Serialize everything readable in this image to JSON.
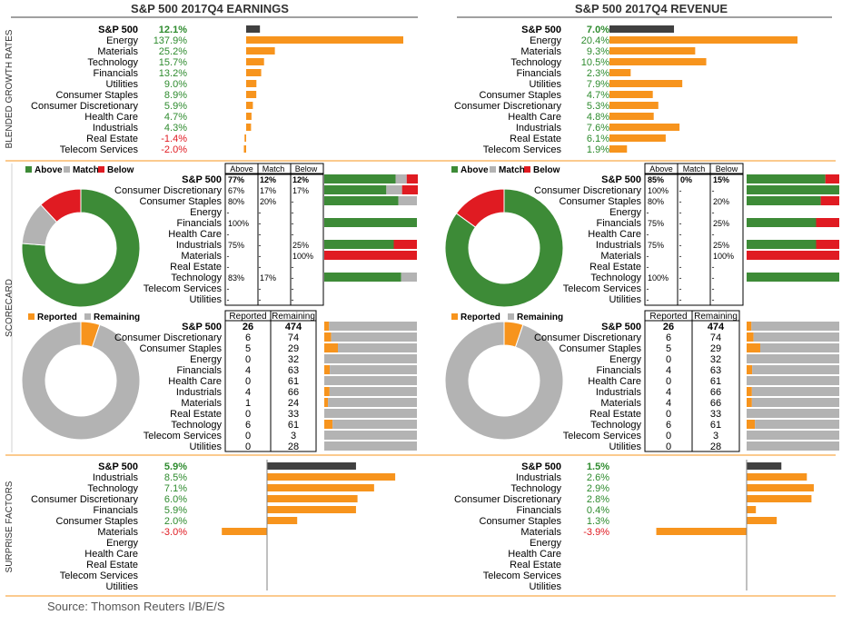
{
  "colors": {
    "orange": "#f7941d",
    "dark": "#404040",
    "green": "#3d8b37",
    "gray": "#b3b3b3",
    "red": "#e01b22",
    "pos": "#2e8b2e",
    "neg": "#e01b22",
    "divider": "#f7941d",
    "label": "#000000"
  },
  "titles": {
    "earnings": "S&P 500 2017Q4 EARNINGS",
    "revenue": "S&P 500 2017Q4 REVENUE"
  },
  "side_labels": {
    "growth": "BLENDED GROWTH RATES",
    "scorecard": "SCORECARD",
    "surprise": "SURPRISE FACTORS"
  },
  "source": "Source: Thomson Reuters I/B/E/S",
  "growth_labels": [
    "S&P 500",
    "Energy",
    "Materials",
    "Technology",
    "Financials",
    "Utilities",
    "Consumer Staples",
    "Consumer Discretionary",
    "Health Care",
    "Industrials",
    "Real Estate",
    "Telecom Services"
  ],
  "scorecard_labels": [
    "S&P 500",
    "Consumer Discretionary",
    "Consumer Staples",
    "Energy",
    "Financials",
    "Health Care",
    "Industrials",
    "Materials",
    "Real Estate",
    "Technology",
    "Telecom Services",
    "Utilities"
  ],
  "surprise_labels": [
    "S&P 500",
    "Industrials",
    "Technology",
    "Consumer Discretionary",
    "Financials",
    "Consumer Staples",
    "Materials",
    "Energy",
    "Health Care",
    "Real Estate",
    "Telecom Services",
    "Utilities"
  ],
  "legend_amb": {
    "above": "Above",
    "match": "Match",
    "below": "Below"
  },
  "legend_rr": {
    "reported": "Reported",
    "remaining": "Remaining"
  },
  "amb_headers": [
    "Above",
    "Match",
    "Below"
  ],
  "rr_headers": [
    "Reported",
    "Remaining"
  ],
  "chart_data": [
    {
      "id": "earnings_growth",
      "type": "bar",
      "values": [
        12.1,
        137.9,
        25.2,
        15.7,
        13.2,
        9.0,
        8.9,
        5.9,
        4.7,
        4.3,
        -1.4,
        -2.0
      ],
      "labels": [
        "12.1%",
        "137.9%",
        "25.2%",
        "15.7%",
        "13.2%",
        "9.0%",
        "8.9%",
        "5.9%",
        "4.7%",
        "4.3%",
        "-1.4%",
        "-2.0%"
      ]
    },
    {
      "id": "revenue_growth",
      "type": "bar",
      "values": [
        7.0,
        20.4,
        9.3,
        10.5,
        2.3,
        7.9,
        4.7,
        5.3,
        4.8,
        7.6,
        6.1,
        1.9
      ],
      "labels": [
        "7.0%",
        "20.4%",
        "9.3%",
        "10.5%",
        "2.3%",
        "7.9%",
        "4.7%",
        "5.3%",
        "4.8%",
        "7.6%",
        "6.1%",
        "1.9%"
      ]
    },
    {
      "id": "earnings_scorecard",
      "type": "table",
      "rows": [
        [
          "77%",
          "12%",
          "12%"
        ],
        [
          "67%",
          "17%",
          "17%"
        ],
        [
          "80%",
          "20%",
          "-"
        ],
        [
          "-",
          "-",
          "-"
        ],
        [
          "100%",
          "-",
          "-"
        ],
        [
          "-",
          "-",
          "-"
        ],
        [
          "75%",
          "-",
          "25%"
        ],
        [
          "-",
          "-",
          "100%"
        ],
        [
          "-",
          "-",
          "-"
        ],
        [
          "83%",
          "17%",
          "-"
        ],
        [
          "-",
          "-",
          "-"
        ],
        [
          "-",
          "-",
          "-"
        ]
      ],
      "bars": [
        [
          77,
          12,
          12
        ],
        [
          67,
          17,
          17
        ],
        [
          80,
          20,
          0
        ],
        [
          0,
          0,
          0
        ],
        [
          100,
          0,
          0
        ],
        [
          0,
          0,
          0
        ],
        [
          75,
          0,
          25
        ],
        [
          0,
          0,
          100
        ],
        [
          0,
          0,
          0
        ],
        [
          83,
          17,
          0
        ],
        [
          0,
          0,
          0
        ],
        [
          0,
          0,
          0
        ]
      ],
      "donut": [
        77,
        12,
        12
      ]
    },
    {
      "id": "revenue_scorecard",
      "type": "table",
      "rows": [
        [
          "85%",
          "0%",
          "15%"
        ],
        [
          "100%",
          "-",
          "-"
        ],
        [
          "80%",
          "-",
          "20%"
        ],
        [
          "-",
          "-",
          "-"
        ],
        [
          "75%",
          "-",
          "25%"
        ],
        [
          "-",
          "-",
          "-"
        ],
        [
          "75%",
          "-",
          "25%"
        ],
        [
          "-",
          "-",
          "100%"
        ],
        [
          "-",
          "-",
          "-"
        ],
        [
          "100%",
          "-",
          "-"
        ],
        [
          "-",
          "-",
          "-"
        ],
        [
          "-",
          "-",
          "-"
        ]
      ],
      "bars": [
        [
          85,
          0,
          15
        ],
        [
          100,
          0,
          0
        ],
        [
          80,
          0,
          20
        ],
        [
          0,
          0,
          0
        ],
        [
          75,
          0,
          25
        ],
        [
          0,
          0,
          0
        ],
        [
          75,
          0,
          25
        ],
        [
          0,
          0,
          100
        ],
        [
          0,
          0,
          0
        ],
        [
          100,
          0,
          0
        ],
        [
          0,
          0,
          0
        ],
        [
          0,
          0,
          0
        ]
      ],
      "donut": [
        85,
        0,
        15
      ]
    },
    {
      "id": "earnings_reported",
      "type": "table",
      "rows": [
        [
          "26",
          "474"
        ],
        [
          "6",
          "74"
        ],
        [
          "5",
          "29"
        ],
        [
          "0",
          "32"
        ],
        [
          "4",
          "63"
        ],
        [
          "0",
          "61"
        ],
        [
          "4",
          "66"
        ],
        [
          "1",
          "24"
        ],
        [
          "0",
          "33"
        ],
        [
          "6",
          "61"
        ],
        [
          "0",
          "3"
        ],
        [
          "0",
          "28"
        ]
      ],
      "donut": [
        26,
        474
      ]
    },
    {
      "id": "revenue_reported",
      "type": "table",
      "rows": [
        [
          "26",
          "474"
        ],
        [
          "6",
          "74"
        ],
        [
          "5",
          "29"
        ],
        [
          "0",
          "32"
        ],
        [
          "4",
          "63"
        ],
        [
          "0",
          "61"
        ],
        [
          "4",
          "66"
        ],
        [
          "4",
          "66"
        ],
        [
          "0",
          "33"
        ],
        [
          "6",
          "61"
        ],
        [
          "0",
          "3"
        ],
        [
          "0",
          "28"
        ]
      ],
      "donut": [
        26,
        474
      ]
    },
    {
      "id": "earnings_surprise",
      "type": "bar",
      "values": [
        5.9,
        8.5,
        7.1,
        6.0,
        5.9,
        2.0,
        -3.0,
        null,
        null,
        null,
        null,
        null
      ],
      "labels": [
        "5.9%",
        "8.5%",
        "7.1%",
        "6.0%",
        "5.9%",
        "2.0%",
        "-3.0%",
        "",
        "",
        "",
        "",
        ""
      ]
    },
    {
      "id": "revenue_surprise",
      "type": "bar",
      "values": [
        1.5,
        2.6,
        2.9,
        2.8,
        0.4,
        1.3,
        -3.9,
        null,
        null,
        null,
        null,
        null
      ],
      "labels": [
        "1.5%",
        "2.6%",
        "2.9%",
        "2.8%",
        "0.4%",
        "1.3%",
        "-3.9%",
        "",
        "",
        "",
        "",
        ""
      ]
    }
  ]
}
